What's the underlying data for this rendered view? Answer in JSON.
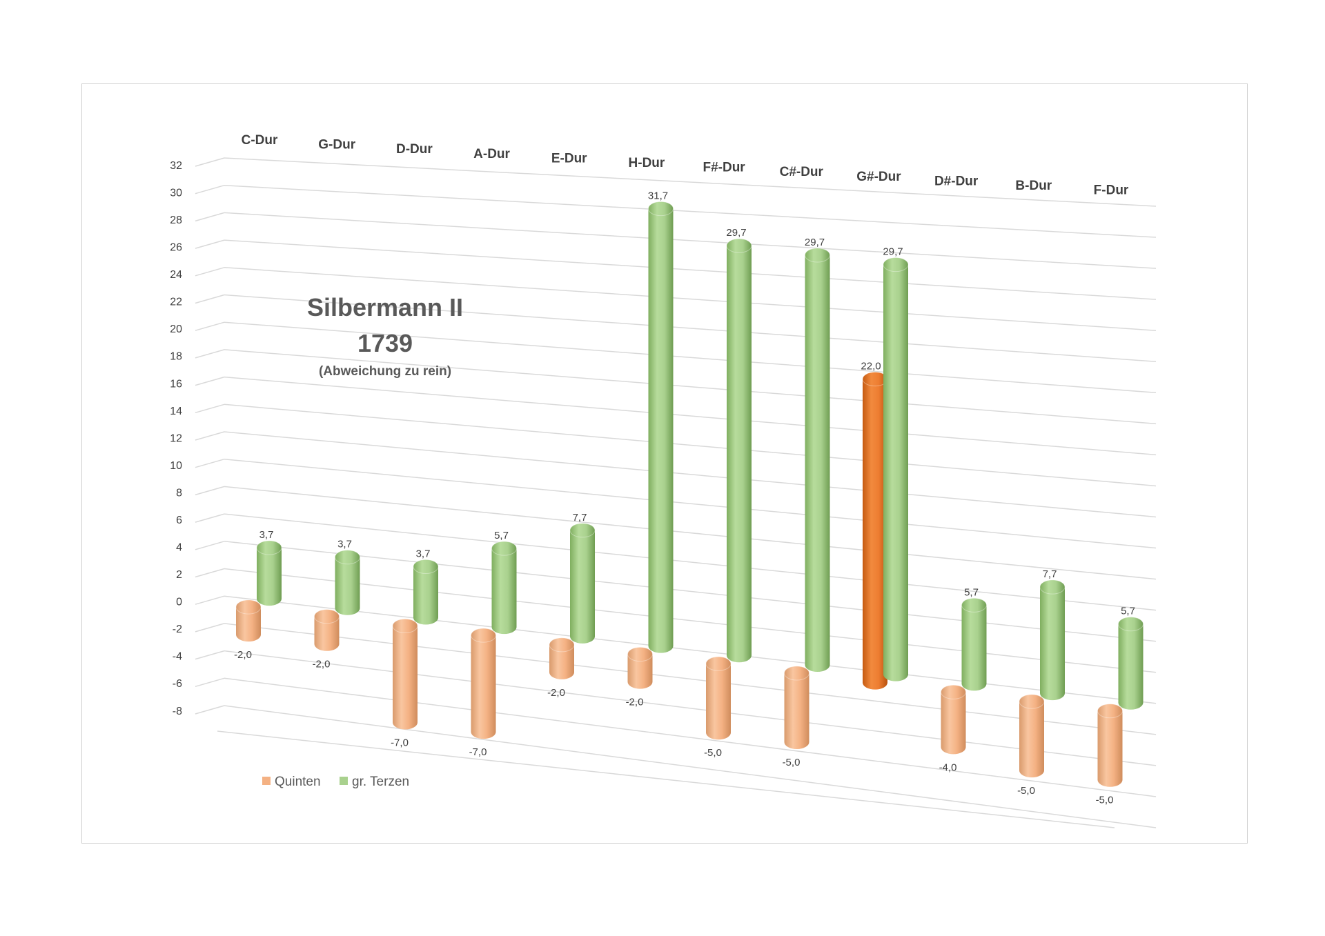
{
  "chart_data": {
    "type": "bar",
    "title": "Silbermann II",
    "title_line2": "1739",
    "subtitle": "(Abweichung zu rein)",
    "categories": [
      "C-Dur",
      "G-Dur",
      "D-Dur",
      "A-Dur",
      "E-Dur",
      "H-Dur",
      "F#-Dur",
      "C#-Dur",
      "G#-Dur",
      "D#-Dur",
      "B-Dur",
      "F-Dur"
    ],
    "y_ticks": [
      "32",
      "30",
      "28",
      "26",
      "24",
      "22",
      "20",
      "18",
      "16",
      "14",
      "12",
      "10",
      "8",
      "6",
      "4",
      "2",
      "0",
      "-2",
      "-4",
      "-6",
      "-8"
    ],
    "ylim": [
      -8,
      32
    ],
    "grid": true,
    "legend_position": "bottom-left",
    "series": [
      {
        "name": "Quinten",
        "color": "#f4b183",
        "highlight_color": "#ed7d31",
        "values": [
          -2.0,
          -2.0,
          -7.0,
          -7.0,
          -2.0,
          -2.0,
          -5.0,
          -5.0,
          22.0,
          -4.0,
          -5.0,
          -5.0
        ],
        "labels": [
          "-2,0",
          "-2,0",
          "-7,0",
          "-7,0",
          "-2,0",
          "-2,0",
          "-5,0",
          "-5,0",
          "22,0",
          "-4,0",
          "-5,0",
          "-5,0"
        ],
        "highlight_index": 8
      },
      {
        "name": "gr. Terzen",
        "color": "#a9d18e",
        "values": [
          3.7,
          3.7,
          3.7,
          5.7,
          7.7,
          31.7,
          29.7,
          29.7,
          29.7,
          5.7,
          7.7,
          5.7
        ],
        "labels": [
          "3,7",
          "3,7",
          "3,7",
          "5,7",
          "7,7",
          "31,7",
          "29,7",
          "29,7",
          "29,7",
          "5,7",
          "7,7",
          "5,7"
        ]
      }
    ]
  }
}
